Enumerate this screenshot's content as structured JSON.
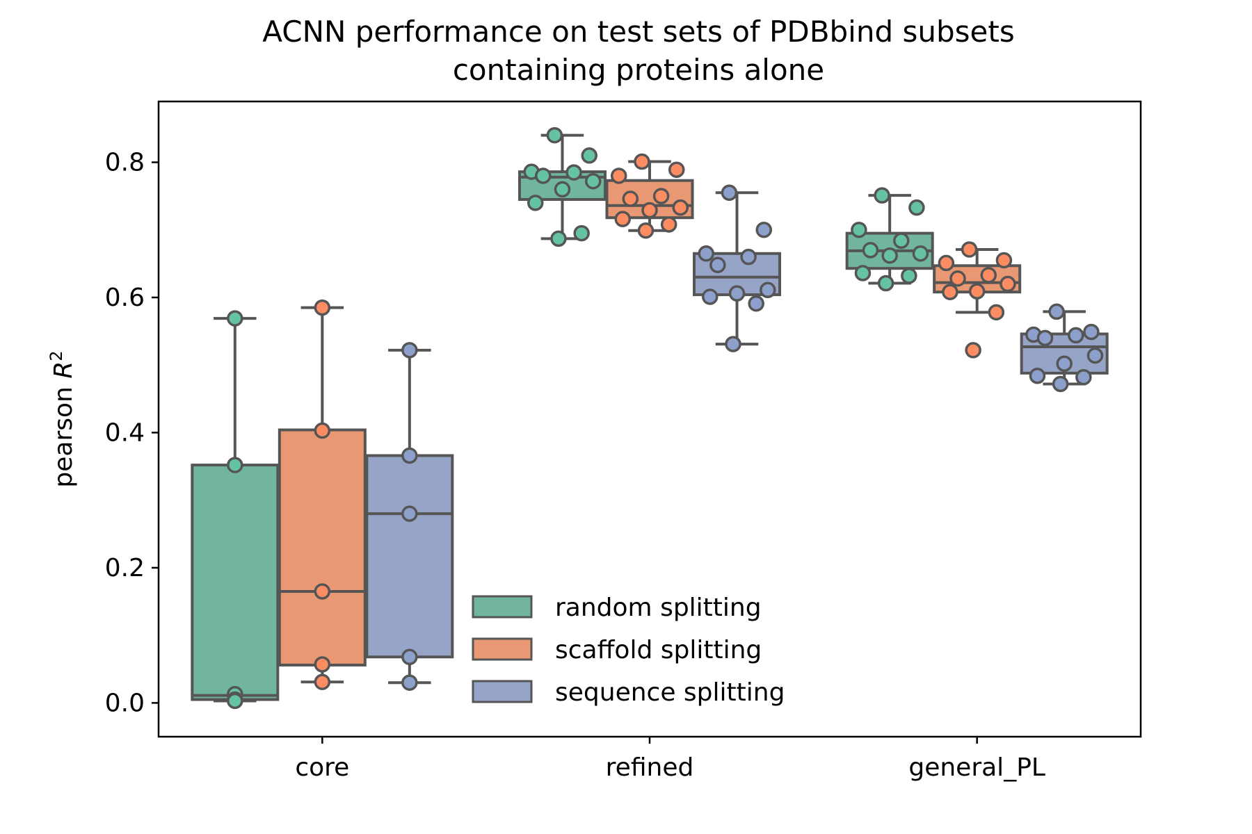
{
  "chart_data": {
    "type": "box",
    "title_line1": "ACNN performance on test sets of PDBbind subsets",
    "title_line2": "containing proteins alone",
    "ylabel_main": "pearson ",
    "ylabel_var": "R",
    "ylabel_sup": "2",
    "xlabel": "",
    "ylim": [
      -0.05,
      0.89
    ],
    "yticks": [
      0.0,
      0.2,
      0.4,
      0.6,
      0.8
    ],
    "ytick_labels": [
      "0.0",
      "0.2",
      "0.4",
      "0.6",
      "0.8"
    ],
    "categories": [
      "core",
      "refined",
      "general_PL"
    ],
    "legend_position": "lower-center",
    "grid": false,
    "series": [
      {
        "name": "random splitting",
        "color": "#71B59F",
        "point_color": "#66C2A5",
        "groups": [
          {
            "q1": 0.005,
            "median": 0.011,
            "q3": 0.352,
            "whislo": 0.003,
            "whishi": 0.569,
            "points": [
              0.569,
              0.352,
              0.013,
              0.005,
              0.003
            ]
          },
          {
            "q1": 0.745,
            "median": 0.778,
            "q3": 0.786,
            "whislo": 0.687,
            "whishi": 0.84,
            "points": [
              0.84,
              0.81,
              0.786,
              0.785,
              0.78,
              0.772,
              0.76,
              0.74,
              0.695,
              0.687
            ]
          },
          {
            "q1": 0.643,
            "median": 0.669,
            "q3": 0.695,
            "whislo": 0.621,
            "whishi": 0.751,
            "points": [
              0.751,
              0.733,
              0.7,
              0.684,
              0.67,
              0.665,
              0.662,
              0.636,
              0.632,
              0.621
            ]
          }
        ]
      },
      {
        "name": "scaffold splitting",
        "color": "#E99874",
        "point_color": "#FC8D62",
        "groups": [
          {
            "q1": 0.056,
            "median": 0.165,
            "q3": 0.404,
            "whislo": 0.031,
            "whishi": 0.585,
            "points": [
              0.585,
              0.403,
              0.165,
              0.057,
              0.031
            ]
          },
          {
            "q1": 0.718,
            "median": 0.736,
            "q3": 0.773,
            "whislo": 0.699,
            "whishi": 0.801,
            "points": [
              0.801,
              0.789,
              0.78,
              0.75,
              0.746,
              0.733,
              0.729,
              0.716,
              0.708,
              0.699
            ]
          },
          {
            "q1": 0.608,
            "median": 0.622,
            "q3": 0.647,
            "whislo": 0.578,
            "whishi": 0.671,
            "points": [
              0.671,
              0.655,
              0.651,
              0.633,
              0.628,
              0.62,
              0.609,
              0.608,
              0.578,
              0.522
            ]
          }
        ]
      },
      {
        "name": "sequence splitting",
        "color": "#96A5C7",
        "point_color": "#8DA0CB",
        "groups": [
          {
            "q1": 0.068,
            "median": 0.28,
            "q3": 0.366,
            "whislo": 0.03,
            "whishi": 0.522,
            "points": [
              0.522,
              0.366,
              0.28,
              0.068,
              0.03
            ]
          },
          {
            "q1": 0.604,
            "median": 0.63,
            "q3": 0.665,
            "whislo": 0.531,
            "whishi": 0.755,
            "points": [
              0.755,
              0.7,
              0.665,
              0.66,
              0.648,
              0.611,
              0.606,
              0.601,
              0.591,
              0.531
            ]
          },
          {
            "q1": 0.488,
            "median": 0.527,
            "q3": 0.546,
            "whislo": 0.472,
            "whishi": 0.579,
            "points": [
              0.579,
              0.549,
              0.545,
              0.544,
              0.54,
              0.514,
              0.502,
              0.484,
              0.482,
              0.472
            ]
          }
        ]
      }
    ]
  },
  "style": {
    "edge_color": "#555555",
    "axis_color": "#000000"
  }
}
